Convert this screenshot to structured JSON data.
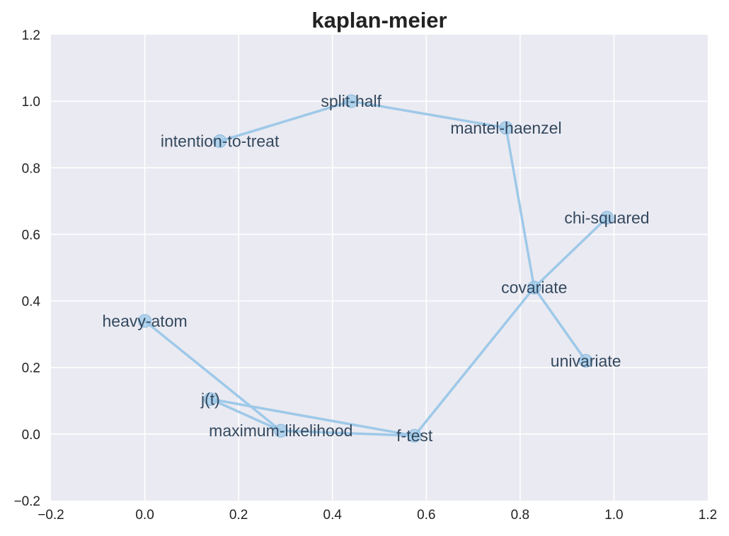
{
  "chart_data": {
    "type": "line",
    "title": "kaplan-meier",
    "xlabel": "",
    "ylabel": "",
    "xlim": [
      -0.2,
      1.2
    ],
    "ylim": [
      -0.2,
      1.2
    ],
    "xticks": [
      "−0.2",
      "0.0",
      "0.2",
      "0.4",
      "0.6",
      "0.8",
      "1.0",
      "1.2"
    ],
    "yticks": [
      "−0.2",
      "0.0",
      "0.2",
      "0.4",
      "0.6",
      "0.8",
      "1.0",
      "1.2"
    ],
    "grid": true,
    "points": [
      {
        "label": "intention-to-treat",
        "x": 0.16,
        "y": 0.88
      },
      {
        "label": "split-half",
        "x": 0.44,
        "y": 1.0
      },
      {
        "label": "mantel-haenzel",
        "x": 0.77,
        "y": 0.92
      },
      {
        "label": "covariate",
        "x": 0.83,
        "y": 0.44
      },
      {
        "label": "chi-squared",
        "x": 0.985,
        "y": 0.65
      },
      {
        "label": "univariate",
        "x": 0.94,
        "y": 0.22
      },
      {
        "label": "heavy-atom",
        "x": 0.0,
        "y": 0.34
      },
      {
        "label": "maximum-likelihood",
        "x": 0.29,
        "y": 0.01
      },
      {
        "label": "j(t)",
        "x": 0.14,
        "y": 0.105
      },
      {
        "label": "f-test",
        "x": 0.575,
        "y": -0.005
      }
    ],
    "path_order": [
      "intention-to-treat",
      "split-half",
      "mantel-haenzel",
      "covariate",
      "univariate",
      "covariate",
      "f-test",
      "j(t)",
      "maximum-likelihood",
      "heavy-atom"
    ],
    "extra_segments": [
      [
        "covariate",
        "chi-squared"
      ],
      [
        "maximum-likelihood",
        "f-test"
      ]
    ],
    "colors": {
      "plot_bg": "#eaeaf2",
      "line": "#9ec9e8",
      "label": "#34495e"
    }
  }
}
